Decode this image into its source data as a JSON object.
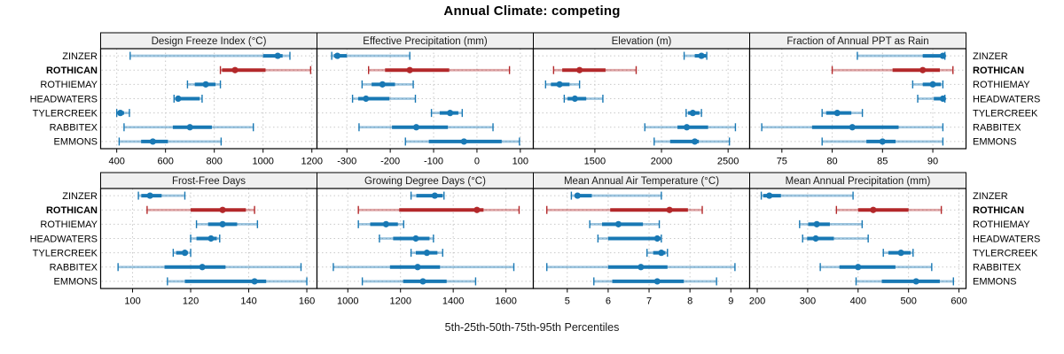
{
  "title": "Annual Climate: competing",
  "caption": "5th-25th-50th-75th-95th Percentiles",
  "chart_data": {
    "type": "dotplot-percentile-trellis",
    "title": "Annual Climate: competing",
    "caption": "5th-25th-50th-75th-95th Percentiles",
    "percentiles": [
      5,
      25,
      50,
      75,
      95
    ],
    "sites": [
      "ZINZER",
      "ROTHICAN",
      "ROTHIEMAY",
      "HEADWATERS",
      "TYLERCREEK",
      "RABBITEX",
      "EMMONS"
    ],
    "highlight_site": "ROTHICAN",
    "legend_position": "none",
    "grid": true,
    "colors": {
      "series_blue": "#1878B4",
      "highlight_red": "#B3282A",
      "strip_bg": "#F0F0F0",
      "grid": "#C9C9C9",
      "border": "#000000",
      "text": "#1A1A1A"
    },
    "panels": [
      {
        "title": "Design Freeze Index (°C)",
        "ticks": [
          400,
          600,
          800,
          1000,
          1200
        ],
        "xlim": [
          334,
          1221
        ],
        "values": {
          "ZINZER": [
            455,
            1000,
            1060,
            1080,
            1110
          ],
          "ROTHICAN": [
            825,
            832,
            885,
            1010,
            1195
          ],
          "ROTHIEMAY": [
            690,
            720,
            765,
            805,
            825
          ],
          "HEADWATERS": [
            635,
            643,
            652,
            740,
            750
          ],
          "TYLERCREEK": [
            400,
            406,
            415,
            430,
            452
          ],
          "RABBITEX": [
            430,
            630,
            700,
            790,
            960
          ],
          "EMMONS": [
            410,
            500,
            548,
            610,
            828
          ]
        }
      },
      {
        "title": "Effective Precipitation (mm)",
        "ticks": [
          -300,
          -200,
          -100,
          0,
          100
        ],
        "xlim": [
          -369,
          130
        ],
        "values": {
          "ZINZER": [
            -335,
            -330,
            -322,
            -300,
            -155
          ],
          "ROTHICAN": [
            -250,
            -212,
            -155,
            -64,
            75
          ],
          "ROTHIEMAY": [
            -265,
            -243,
            -218,
            -189,
            -147
          ],
          "HEADWATERS": [
            -287,
            -274,
            -256,
            -202,
            -142
          ],
          "TYLERCREEK": [
            -105,
            -86,
            -62,
            -43,
            -34
          ],
          "RABBITEX": [
            -272,
            -196,
            -140,
            -67,
            37
          ],
          "EMMONS": [
            -165,
            -111,
            -30,
            57,
            98
          ]
        }
      },
      {
        "title": "Elevation (m)",
        "ticks": [
          1500,
          2000,
          2500
        ],
        "xlim": [
          1038,
          2662
        ],
        "values": {
          "ZINZER": [
            2170,
            2250,
            2300,
            2335,
            2340
          ],
          "ROTHICAN": [
            1190,
            1255,
            1385,
            1580,
            1810
          ],
          "ROTHIEMAY": [
            1130,
            1170,
            1235,
            1310,
            1385
          ],
          "HEADWATERS": [
            1270,
            1295,
            1350,
            1435,
            1560
          ],
          "TYLERCREEK": [
            2185,
            2200,
            2235,
            2285,
            2300
          ],
          "RABBITEX": [
            1875,
            2120,
            2190,
            2350,
            2555
          ],
          "EMMONS": [
            1945,
            2065,
            2250,
            2280,
            2510
          ]
        }
      },
      {
        "title": "Fraction of Annual PPT as Rain",
        "ticks": [
          75,
          80,
          85,
          90
        ],
        "xlim": [
          71.8,
          93.3
        ],
        "values": {
          "ZINZER": [
            82.5,
            89,
            91,
            91.1,
            91.2
          ],
          "ROTHICAN": [
            80,
            86,
            89,
            90.7,
            92
          ],
          "ROTHIEMAY": [
            88,
            89,
            90,
            90.8,
            91
          ],
          "HEADWATERS": [
            88.5,
            90.1,
            91,
            91.1,
            91.2
          ],
          "TYLERCREEK": [
            79,
            79.4,
            80.5,
            81.9,
            83
          ],
          "RABBITEX": [
            73,
            78,
            82,
            86.6,
            91
          ],
          "EMMONS": [
            79,
            83.4,
            85,
            86.3,
            91
          ]
        }
      },
      {
        "title": "Frost-Free Days",
        "ticks": [
          100,
          120,
          140,
          160
        ],
        "xlim": [
          89,
          163.5
        ],
        "values": {
          "ZINZER": [
            102,
            103,
            106,
            110,
            118
          ],
          "ROTHICAN": [
            105,
            120,
            131,
            139,
            142
          ],
          "ROTHIEMAY": [
            122,
            126,
            131,
            136,
            143
          ],
          "HEADWATERS": [
            120,
            122,
            127,
            129,
            130
          ],
          "TYLERCREEK": [
            114,
            115,
            118,
            119,
            120
          ],
          "RABBITEX": [
            95,
            111,
            124,
            132,
            158
          ],
          "EMMONS": [
            112,
            118,
            142,
            146,
            160
          ]
        }
      },
      {
        "title": "Growing Degree Days (°C)",
        "ticks": [
          1000,
          1200,
          1400,
          1600
        ],
        "xlim": [
          883,
          1704
        ],
        "values": {
          "ZINZER": [
            1240,
            1260,
            1330,
            1360,
            1365
          ],
          "ROTHICAN": [
            1040,
            1195,
            1490,
            1515,
            1650
          ],
          "ROTHIEMAY": [
            1040,
            1085,
            1145,
            1190,
            1212
          ],
          "HEADWATERS": [
            1120,
            1172,
            1258,
            1310,
            1325
          ],
          "TYLERCREEK": [
            1240,
            1258,
            1300,
            1340,
            1360
          ],
          "RABBITEX": [
            945,
            1160,
            1265,
            1350,
            1630
          ],
          "EMMONS": [
            1055,
            1210,
            1285,
            1375,
            1485
          ]
        }
      },
      {
        "title": "Mean Annual Air Temperature (°C)",
        "ticks": [
          5,
          6,
          7,
          8,
          9
        ],
        "xlim": [
          4.17,
          9.46
        ],
        "values": {
          "ZINZER": [
            5.1,
            5.2,
            5.25,
            5.6,
            7.3
          ],
          "ROTHICAN": [
            4.5,
            6.05,
            7.5,
            7.95,
            8.3
          ],
          "ROTHIEMAY": [
            5.55,
            5.85,
            6.25,
            6.85,
            7.25
          ],
          "HEADWATERS": [
            5.75,
            6.0,
            7.2,
            7.28,
            7.3
          ],
          "TYLERCREEK": [
            6.95,
            7.1,
            7.3,
            7.4,
            7.45
          ],
          "RABBITEX": [
            4.5,
            6.0,
            6.8,
            7.45,
            9.1
          ],
          "EMMONS": [
            5.65,
            6.1,
            7.2,
            7.85,
            8.65
          ]
        }
      },
      {
        "title": "Mean Annual Precipitation (mm)",
        "ticks": [
          200,
          300,
          400,
          500,
          600
        ],
        "xlim": [
          185,
          614
        ],
        "values": {
          "ZINZER": [
            208,
            212,
            224,
            247,
            390
          ],
          "ROTHICAN": [
            357,
            400,
            430,
            500,
            565
          ],
          "ROTHIEMAY": [
            284,
            301,
            318,
            344,
            408
          ],
          "HEADWATERS": [
            290,
            299,
            316,
            352,
            420
          ],
          "TYLERCREEK": [
            450,
            460,
            485,
            504,
            509
          ],
          "RABBITEX": [
            325,
            363,
            400,
            474,
            546
          ],
          "EMMONS": [
            396,
            447,
            515,
            562,
            589
          ]
        }
      }
    ]
  }
}
